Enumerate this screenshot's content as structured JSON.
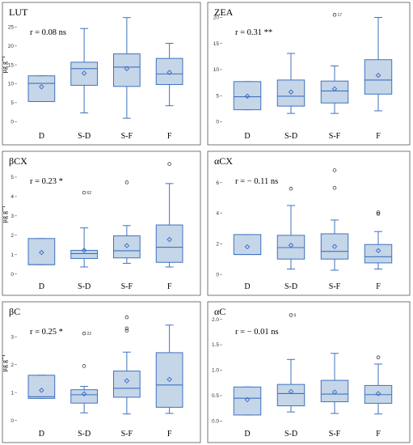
{
  "chart_data": [
    {
      "type": "box",
      "title": "LUT",
      "annotation": "r = 0.08 ns",
      "ylabel": "µg g⁻¹",
      "categories": [
        "D",
        "S-D",
        "S-F",
        "F"
      ],
      "yticks": [
        0,
        5,
        10,
        15,
        20,
        25
      ],
      "ylim": [
        -1,
        28.5
      ],
      "boxes": [
        {
          "min": 5.3,
          "q1": 5.3,
          "median": 10.1,
          "q3": 12.1,
          "max": 12.1,
          "mean": 9.2,
          "outliers": []
        },
        {
          "min": 2.3,
          "q1": 9.6,
          "median": 14.0,
          "q3": 15.7,
          "max": 24.6,
          "mean": 12.8,
          "outliers": []
        },
        {
          "min": 0.9,
          "q1": 9.3,
          "median": 14.4,
          "q3": 17.9,
          "max": 27.5,
          "mean": 14.0,
          "outliers": []
        },
        {
          "min": 4.2,
          "q1": 9.8,
          "median": 12.6,
          "q3": 16.7,
          "max": 20.7,
          "mean": 13.0,
          "outliers": []
        }
      ]
    },
    {
      "type": "box",
      "title": "ZEA",
      "annotation": "r = 0.31 **",
      "ylabel": "",
      "categories": [
        "D",
        "S-D",
        "S-F",
        "F"
      ],
      "yticks": [
        0,
        5,
        10,
        15,
        20
      ],
      "ylim": [
        -0.7,
        20.7
      ],
      "boxes": [
        {
          "min": 2.3,
          "q1": 2.3,
          "median": 4.8,
          "q3": 7.7,
          "max": 7.7,
          "mean": 4.9,
          "outliers": []
        },
        {
          "min": 1.6,
          "q1": 3.0,
          "median": 4.9,
          "q3": 8.0,
          "max": 13.1,
          "mean": 5.7,
          "outliers": []
        },
        {
          "min": 1.6,
          "q1": 3.6,
          "median": 5.9,
          "q3": 7.8,
          "max": 10.7,
          "mean": 6.3,
          "outliers": [
            {
              "v": 20.5,
              "label": "17"
            }
          ]
        },
        {
          "min": 2.1,
          "q1": 5.3,
          "median": 8.0,
          "q3": 11.9,
          "max": 20.0,
          "mean": 8.9,
          "outliers": []
        }
      ]
    },
    {
      "type": "box",
      "title": "βCX",
      "annotation": "r = 0.23 *",
      "ylabel": "µg g⁻¹",
      "categories": [
        "D",
        "S-D",
        "S-F",
        "F"
      ],
      "yticks": [
        0,
        1,
        2,
        3,
        4,
        5
      ],
      "ylim": [
        -0.1,
        5.75
      ],
      "boxes": [
        {
          "min": 0.48,
          "q1": 0.48,
          "median": 0.48,
          "q3": 1.83,
          "max": 1.83,
          "mean": 1.11,
          "outliers": []
        },
        {
          "min": 0.36,
          "q1": 0.8,
          "median": 1.05,
          "q3": 1.22,
          "max": 2.38,
          "mean": 1.22,
          "outliers": [
            {
              "v": 4.2,
              "label": "62"
            }
          ]
        },
        {
          "min": 0.55,
          "q1": 0.83,
          "median": 1.2,
          "q3": 1.97,
          "max": 2.5,
          "mean": 1.46,
          "outliers": [
            {
              "v": 4.73,
              "label": ""
            }
          ]
        },
        {
          "min": 0.36,
          "q1": 0.6,
          "median": 1.38,
          "q3": 2.53,
          "max": 4.67,
          "mean": 1.78,
          "outliers": [
            {
              "v": 5.68,
              "label": ""
            }
          ]
        }
      ]
    },
    {
      "type": "box",
      "title": "αCX",
      "annotation": "r = − 0.11 ns",
      "ylabel": "",
      "categories": [
        "D",
        "S-D",
        "S-F",
        "F"
      ],
      "yticks": [
        0,
        2,
        4,
        6
      ],
      "ylim": [
        -0.1,
        7.3
      ],
      "boxes": [
        {
          "min": 1.3,
          "q1": 1.3,
          "median": 1.3,
          "q3": 2.6,
          "max": 2.6,
          "mean": 1.8,
          "outliers": []
        },
        {
          "min": 0.35,
          "q1": 1.0,
          "median": 1.75,
          "q3": 2.55,
          "max": 4.5,
          "mean": 1.9,
          "outliers": [
            {
              "v": 5.6,
              "label": ""
            }
          ]
        },
        {
          "min": 0.27,
          "q1": 1.0,
          "median": 1.5,
          "q3": 2.65,
          "max": 3.55,
          "mean": 1.82,
          "outliers": [
            {
              "v": 5.65,
              "label": ""
            },
            {
              "v": 6.8,
              "label": ""
            }
          ]
        },
        {
          "min": 0.35,
          "q1": 0.75,
          "median": 1.15,
          "q3": 1.95,
          "max": 2.8,
          "mean": 1.55,
          "outliers": [
            {
              "v": 3.95,
              "label": ""
            },
            {
              "v": 4.05,
              "label": ""
            }
          ]
        }
      ]
    },
    {
      "type": "box",
      "title": "βC",
      "annotation": "r = 0.25 *",
      "ylabel": "µg g⁻¹",
      "categories": [
        "D",
        "S-D",
        "S-F",
        "F"
      ],
      "yticks": [
        0,
        1,
        2,
        3
      ],
      "ylim": [
        -0.1,
        3.85
      ],
      "boxes": [
        {
          "min": 0.79,
          "q1": 0.79,
          "median": 0.85,
          "q3": 1.62,
          "max": 1.62,
          "mean": 1.08,
          "outliers": []
        },
        {
          "min": 0.27,
          "q1": 0.62,
          "median": 0.92,
          "q3": 1.1,
          "max": 1.22,
          "mean": 0.95,
          "outliers": [
            {
              "v": 1.95,
              "label": ""
            },
            {
              "v": 3.12,
              "label": "22"
            }
          ]
        },
        {
          "min": 0.23,
          "q1": 0.83,
          "median": 1.15,
          "q3": 1.77,
          "max": 2.45,
          "mean": 1.42,
          "outliers": [
            {
              "v": 3.22,
              "label": ""
            },
            {
              "v": 3.3,
              "label": ""
            },
            {
              "v": 3.7,
              "label": ""
            }
          ]
        },
        {
          "min": 0.25,
          "q1": 0.47,
          "median": 1.27,
          "q3": 2.43,
          "max": 3.42,
          "mean": 1.47,
          "outliers": []
        }
      ]
    },
    {
      "type": "box",
      "title": "αC",
      "annotation": "r = − 0.01 ns",
      "ylabel": "",
      "categories": [
        "D",
        "S-D",
        "S-F",
        "F"
      ],
      "yticks": [
        0.0,
        0.5,
        1.0,
        1.5,
        2.0
      ],
      "ylim": [
        -0.04,
        2.12
      ],
      "boxes": [
        {
          "min": 0.12,
          "q1": 0.12,
          "median": 0.45,
          "q3": 0.67,
          "max": 0.67,
          "mean": 0.42,
          "outliers": []
        },
        {
          "min": 0.18,
          "q1": 0.3,
          "median": 0.54,
          "q3": 0.72,
          "max": 1.21,
          "mean": 0.58,
          "outliers": [
            {
              "v": 2.08,
              "label": "9"
            }
          ]
        },
        {
          "min": 0.15,
          "q1": 0.38,
          "median": 0.53,
          "q3": 0.8,
          "max": 1.33,
          "mean": 0.57,
          "outliers": []
        },
        {
          "min": 0.14,
          "q1": 0.35,
          "median": 0.52,
          "q3": 0.7,
          "max": 1.12,
          "mean": 0.54,
          "outliers": [
            {
              "v": 1.25,
              "label": ""
            }
          ]
        }
      ]
    }
  ],
  "colors": {
    "box_fill": "#c5d6e8",
    "box_stroke": "#3f72bf",
    "whisker": "#3f72bf",
    "mean_marker": "#3366cc",
    "outlier": "#222222",
    "frame": "#555555"
  }
}
